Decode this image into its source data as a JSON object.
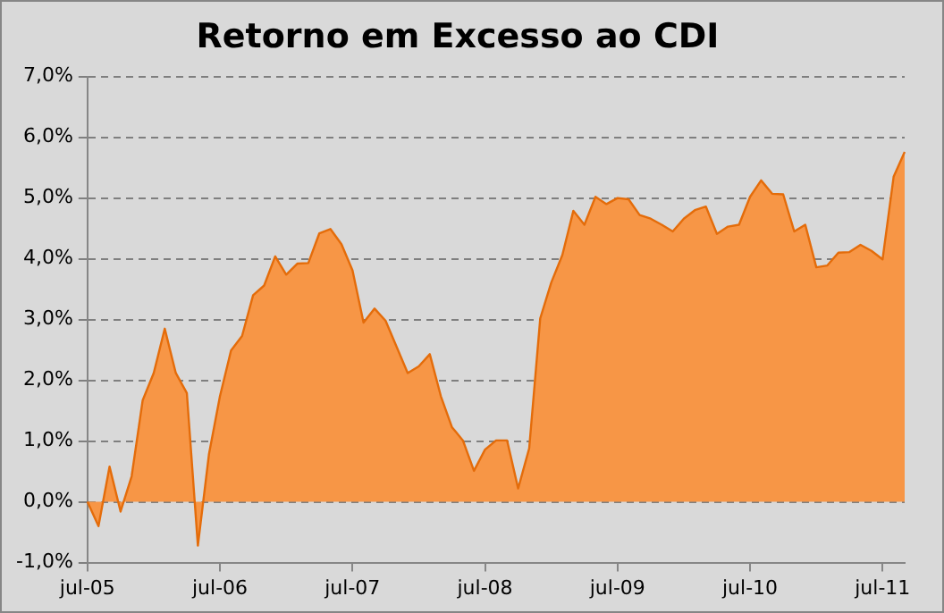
{
  "chart_data": {
    "type": "area",
    "title": "Retorno em Excesso ao CDI",
    "categories": [
      "jul-05",
      null,
      null,
      null,
      null,
      null,
      null,
      null,
      null,
      null,
      null,
      null,
      "jul-06",
      null,
      null,
      null,
      null,
      null,
      null,
      null,
      null,
      null,
      null,
      null,
      "jul-07",
      null,
      null,
      null,
      null,
      null,
      null,
      null,
      null,
      null,
      null,
      null,
      "jul-08",
      null,
      null,
      null,
      null,
      null,
      null,
      null,
      null,
      null,
      null,
      null,
      "jul-09",
      null,
      null,
      null,
      null,
      null,
      null,
      null,
      null,
      null,
      null,
      null,
      "jul-10",
      null,
      null,
      null,
      null,
      null,
      null,
      null,
      null,
      null,
      null,
      null,
      "jul-11",
      null,
      null
    ],
    "series": [
      {
        "color": "#f79646",
        "values": [
          0,
          -0.4,
          0.58,
          -0.16,
          0.42,
          1.67,
          2.12,
          2.85,
          2.12,
          1.79,
          -0.72,
          0.78,
          1.74,
          2.49,
          2.73,
          3.4,
          3.56,
          4.04,
          3.74,
          3.92,
          3.93,
          4.42,
          4.49,
          4.24,
          3.81,
          2.95,
          3.18,
          2.98,
          2.55,
          2.12,
          2.23,
          2.43,
          1.74,
          1.23,
          1.01,
          0.51,
          0.86,
          1.01,
          1.01,
          0.22,
          0.88,
          3.02,
          3.61,
          4.06,
          4.79,
          4.56,
          5.02,
          4.9,
          5.0,
          4.98,
          4.72,
          4.66,
          4.56,
          4.45,
          4.66,
          4.8,
          4.86,
          4.41,
          4.53,
          4.56,
          5.02,
          5.29,
          5.07,
          5.06,
          4.45,
          4.56,
          3.86,
          3.89,
          4.1,
          4.11,
          4.23,
          4.13,
          3.99,
          5.35,
          5.76
        ]
      }
    ],
    "ylim": [
      -1,
      7
    ],
    "yticks": [
      {
        "value": -1,
        "label": "-1,0%"
      },
      {
        "value": 0,
        "label": "0,0%"
      },
      {
        "value": 1,
        "label": "1,0%"
      },
      {
        "value": 2,
        "label": "2,0%"
      },
      {
        "value": 3,
        "label": "3,0%"
      },
      {
        "value": 4,
        "label": "4,0%"
      },
      {
        "value": 5,
        "label": "5,0%"
      },
      {
        "value": 6,
        "label": "6,0%"
      },
      {
        "value": 7,
        "label": "7,0%"
      }
    ],
    "grid": "y",
    "marker": "none",
    "line_style": "solid"
  }
}
